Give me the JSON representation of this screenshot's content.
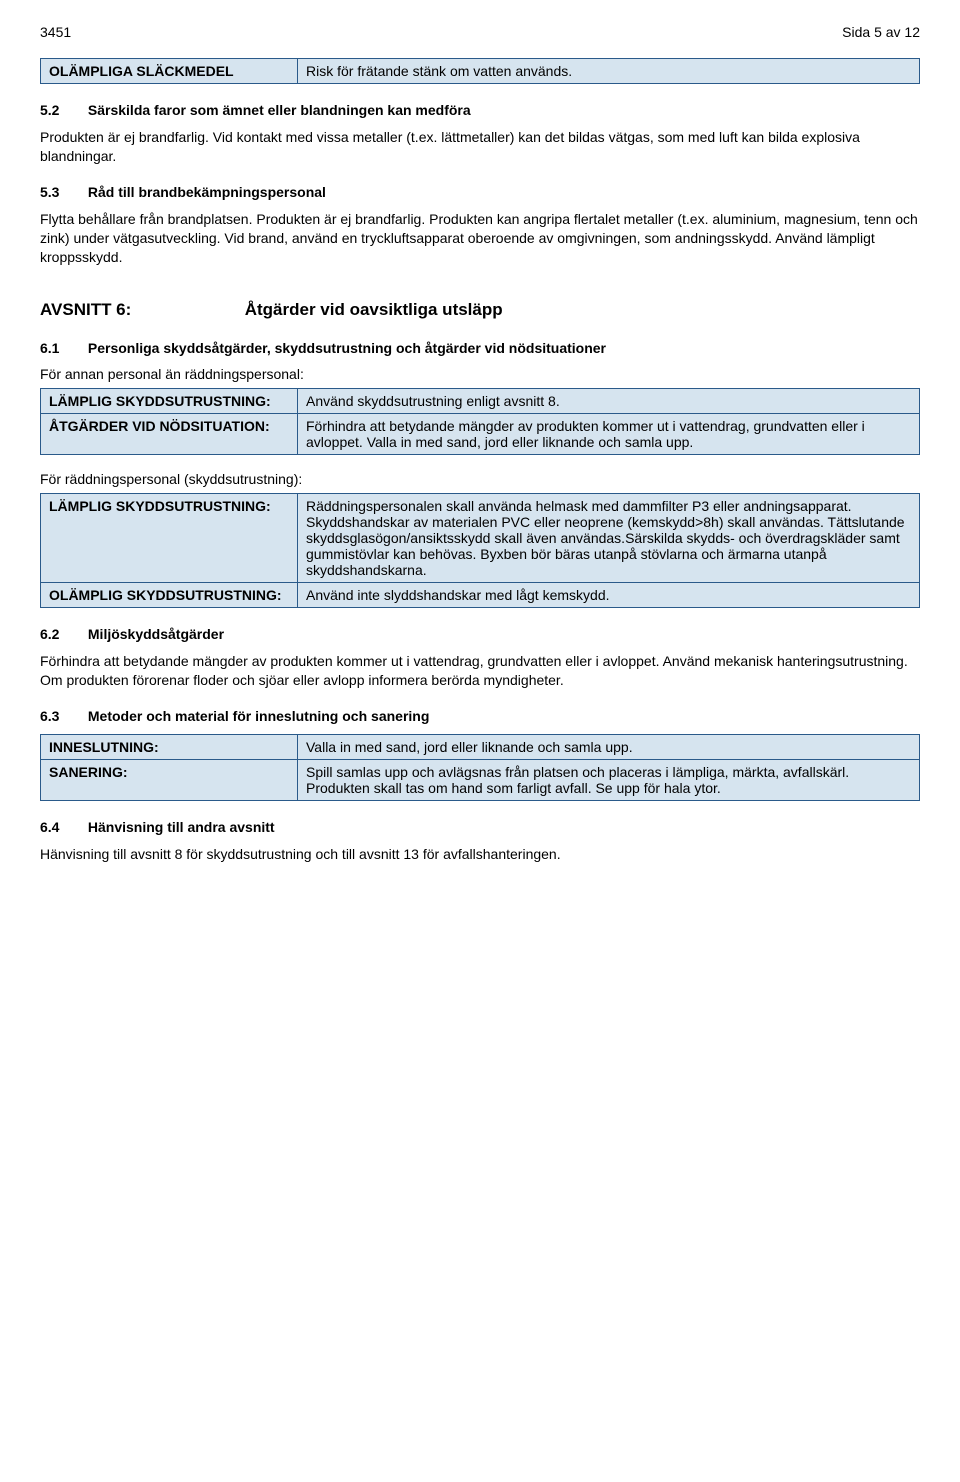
{
  "header": {
    "doc_id": "3451",
    "page_indicator": "Sida 5 av 12"
  },
  "table1": {
    "label": "OLÄMPLIGA SLÄCKMEDEL",
    "value": "Risk för frätande stänk om vatten används."
  },
  "sec52": {
    "num": "5.2",
    "title": "Särskilda faror som ämnet eller blandningen kan medföra",
    "body": "Produkten är ej brandfarlig. Vid kontakt med vissa metaller (t.ex. lättmetaller) kan det bildas vätgas, som med luft kan bilda explosiva blandningar."
  },
  "sec53": {
    "num": "5.3",
    "title": "Råd till brandbekämpningspersonal",
    "body": "Flytta behållare från brandplatsen. Produkten är ej brandfarlig. Produkten kan angripa flertalet metaller (t.ex. aluminium, magnesium, tenn och zink) under vätgasutveckling. Vid brand, använd en tryckluftsapparat oberoende av omgivningen, som andningsskydd. Använd lämpligt kroppsskydd."
  },
  "avsnitt6": {
    "label": "AVSNITT 6:",
    "title": "Åtgärder vid oavsiktliga utsläpp"
  },
  "sec61": {
    "num": "6.1",
    "title": "Personliga skyddsåtgärder, skyddsutrustning och åtgärder vid nödsituationer",
    "intro1": "För annan personal än räddningspersonal:",
    "t1r1l": "LÄMPLIG SKYDDSUTRUSTNING:",
    "t1r1v": "Använd skyddsutrustning enligt avsnitt 8.",
    "t1r2l": "ÅTGÄRDER VID NÖDSITUATION:",
    "t1r2v": "Förhindra att betydande mängder av produkten kommer ut i vattendrag, grundvatten eller i avloppet. Valla in med sand, jord eller liknande och samla upp.",
    "intro2": "För räddningspersonal (skyddsutrustning):",
    "t2r1l": "LÄMPLIG SKYDDSUTRUSTNING:",
    "t2r1v": "Räddningspersonalen skall använda helmask med dammfilter P3 eller andningsapparat. Skyddshandskar av materialen PVC eller neoprene (kemskydd>8h) skall användas. Tättslutande skyddsglasögon/ansiktsskydd skall även användas.Särskilda skydds- och överdragskläder samt gummistövlar kan behövas. Byxben bör bäras utanpå stövlarna och ärmarna utanpå skyddshandskarna.",
    "t2r2l": "OLÄMPLIG SKYDDSUTRUSTNING:",
    "t2r2v": "Använd inte slyddshandskar med lågt kemskydd."
  },
  "sec62": {
    "num": "6.2",
    "title": "Miljöskyddsåtgärder",
    "body": "Förhindra att betydande mängder av produkten kommer ut i vattendrag, grundvatten eller i avloppet. Använd mekanisk hanteringsutrustning. Om produkten förorenar floder och sjöar eller avlopp informera berörda myndigheter."
  },
  "sec63": {
    "num": "6.3",
    "title": "Metoder och material för inneslutning och sanering",
    "r1l": "INNESLUTNING:",
    "r1v": "Valla in med sand, jord eller liknande och samla upp.",
    "r2l": "SANERING:",
    "r2v": "Spill samlas upp och avlägsnas från platsen och placeras i lämpliga, märkta, avfallskärl. Produkten skall tas om hand som farligt avfall. Se upp för hala ytor."
  },
  "sec64": {
    "num": "6.4",
    "title": "Hänvisning till andra avsnitt",
    "body": "Hänvisning till avsnitt 8 för skyddsutrustning och till avsnitt 13 för avfallshanteringen."
  }
}
